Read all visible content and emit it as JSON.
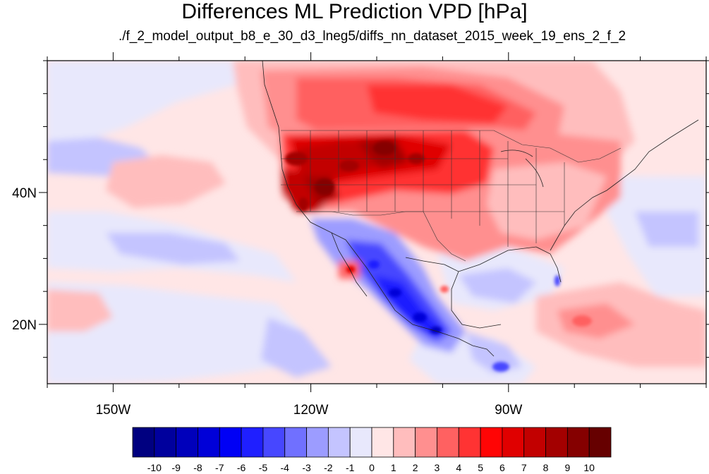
{
  "title": "Differences ML Prediction VPD [hPa]",
  "subtitle": "./f_2_model_output_b8_e_30_d3_lneg5/diffs_nn_dataset_2015_week_19_ens_2_f_2",
  "map": {
    "lon_range": [
      -160,
      -60
    ],
    "lat_range": [
      11,
      60
    ],
    "lon_ticks": [
      {
        "value": -150,
        "label": "150W"
      },
      {
        "value": -120,
        "label": "120W"
      },
      {
        "value": -90,
        "label": "90W"
      }
    ],
    "lat_ticks": [
      {
        "value": 40,
        "label": "40N"
      },
      {
        "value": 20,
        "label": "20N"
      }
    ],
    "field_pattern": [
      {
        "region": "Pacific Northwest / northern Rockies",
        "value": 9
      },
      {
        "region": "California / Nevada interior",
        "value": 8
      },
      {
        "region": "Northern Great Plains",
        "value": 7
      },
      {
        "region": "Southern Canada",
        "value": 5
      },
      {
        "region": "Eastern United States",
        "value": 3
      },
      {
        "region": "Caribbean",
        "value": 4
      },
      {
        "region": "Mexico / Sierra Madre",
        "value": -7
      },
      {
        "region": "Gulf of Mexico",
        "value": -2
      },
      {
        "region": "Eastern Pacific subtropics",
        "value": -2
      },
      {
        "region": "Central Pacific",
        "value": 1
      }
    ]
  },
  "colorbar": {
    "labels": [
      "-10",
      "-9",
      "-8",
      "-7",
      "-6",
      "-5",
      "-4",
      "-3",
      "-2",
      "-1",
      "0",
      "1",
      "2",
      "3",
      "4",
      "5",
      "6",
      "7",
      "8",
      "9",
      "10"
    ],
    "colors": [
      "#000080",
      "#00009d",
      "#0000bb",
      "#0000d8",
      "#0000f5",
      "#1f1fff",
      "#4747ff",
      "#7070ff",
      "#9c9cff",
      "#c4c4ff",
      "#e8e8fc",
      "#ffe6e6",
      "#ffbdbd",
      "#ff8f8f",
      "#ff6161",
      "#ff3333",
      "#ff0505",
      "#e00000",
      "#c20000",
      "#a30000",
      "#850000",
      "#660000"
    ]
  }
}
